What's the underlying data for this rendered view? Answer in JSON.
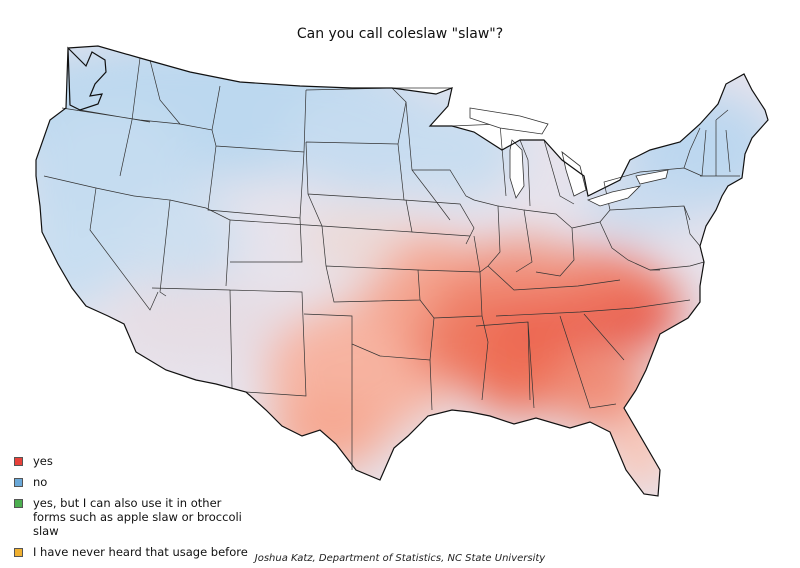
{
  "title": "Can you call coleslaw \"slaw\"?",
  "legend": [
    {
      "label": "yes",
      "color": "#e8413a"
    },
    {
      "label": "no",
      "color": "#6aa8d8"
    },
    {
      "label": "yes, but I can also use it in other forms such as apple slaw or broccoli slaw",
      "color": "#4caf50"
    },
    {
      "label": "I have never heard that usage before",
      "color": "#f0b030"
    }
  ],
  "credit": "Joshua Katz, Department of Statistics, NC State University",
  "map": {
    "dominant_answer_by_region": {
      "yes": "Southeast, South-Central, Texas, Ohio Valley",
      "no": "West, Northern Plains, Upper Midwest, Northeast",
      "mixed": "Southwest, Central Plains"
    }
  }
}
